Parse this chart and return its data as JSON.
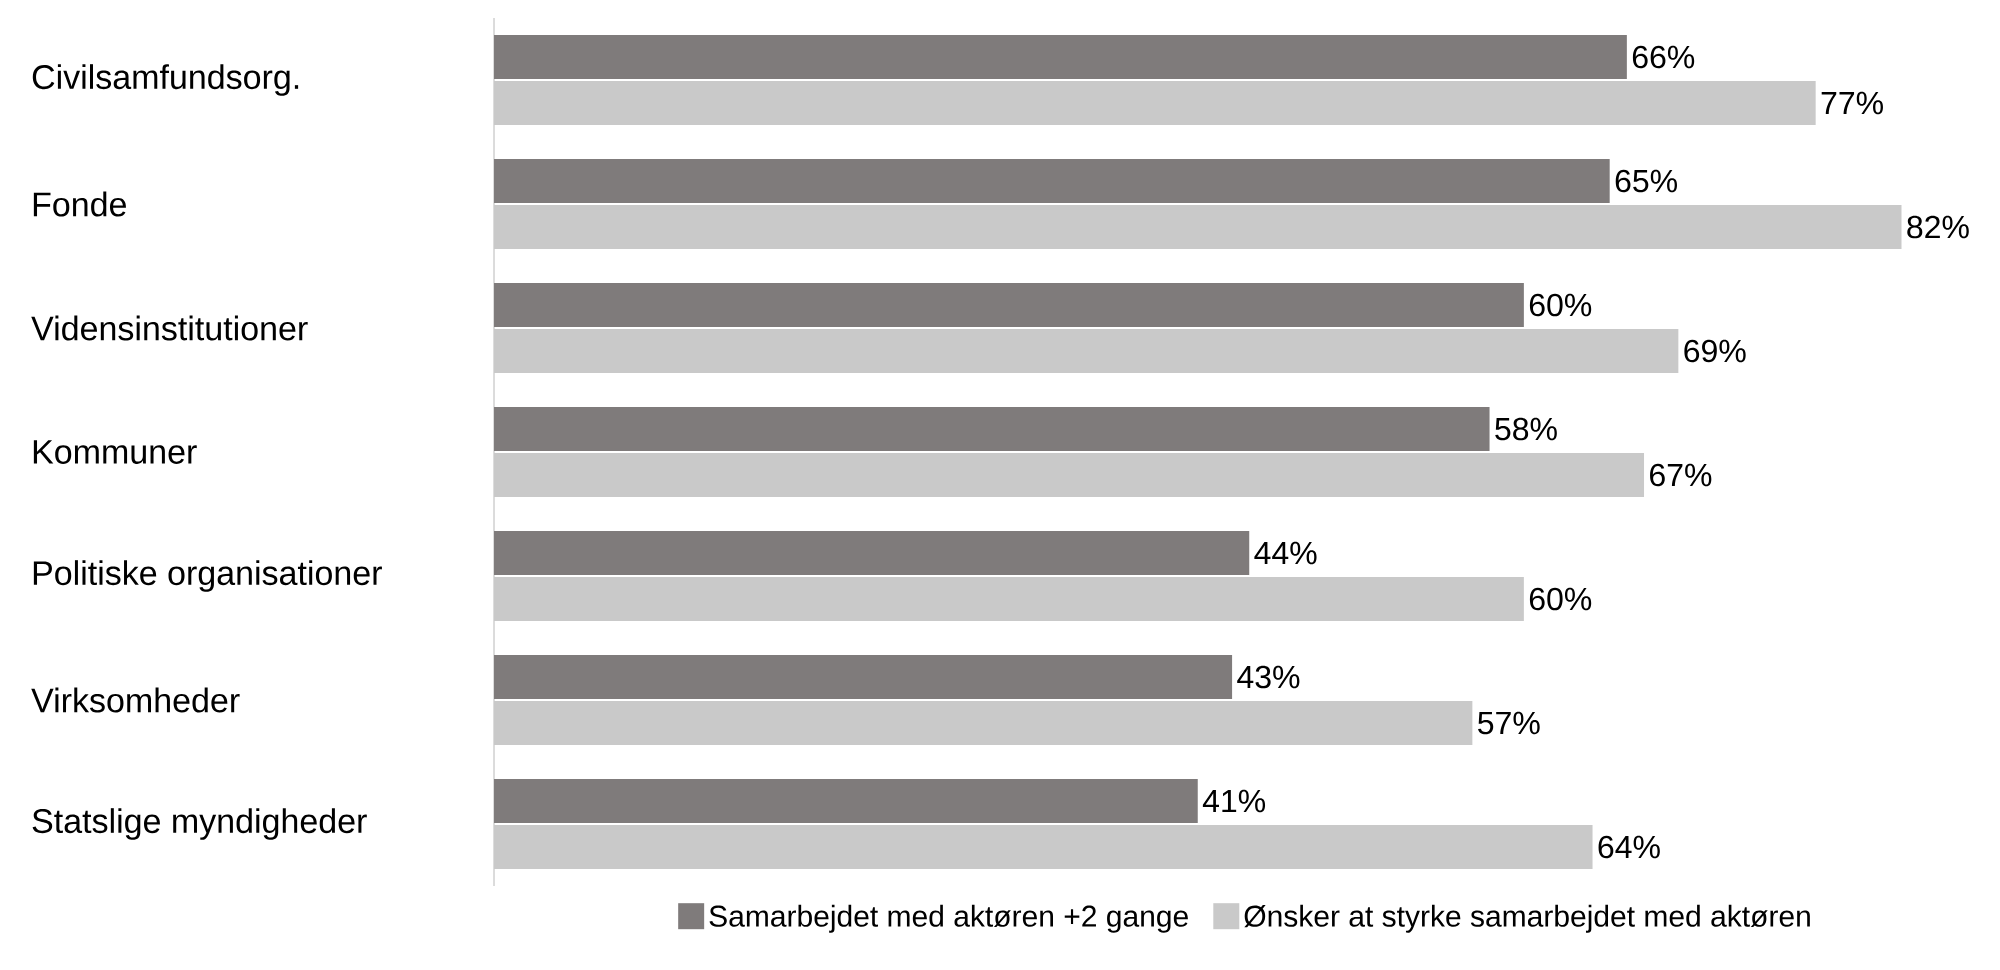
{
  "chart_data": {
    "type": "bar",
    "orientation": "horizontal",
    "legend": "bottom",
    "categories": [
      "Civilsamfundsorg.",
      "Fonde",
      "Vidensinstitutioner",
      "Kommuner",
      "Politiske organisationer",
      "Virksomheder",
      "Statslige myndigheder"
    ],
    "series": [
      {
        "name": "Samarbejdet med aktøren +2 gange",
        "color": "#7f7b7b",
        "values": [
          66,
          65,
          60,
          58,
          44,
          43,
          41
        ],
        "value_labels": [
          "66%",
          "65%",
          "60%",
          "58%",
          "44%",
          "43%",
          "41%"
        ]
      },
      {
        "name": "Ønsker at styrke samarbejdet med aktøren",
        "color": "#c9c9c9",
        "values": [
          77,
          82,
          69,
          67,
          60,
          57,
          64
        ],
        "value_labels": [
          "77%",
          "82%",
          "69%",
          "67%",
          "60%",
          "57%",
          "64%"
        ]
      }
    ]
  }
}
